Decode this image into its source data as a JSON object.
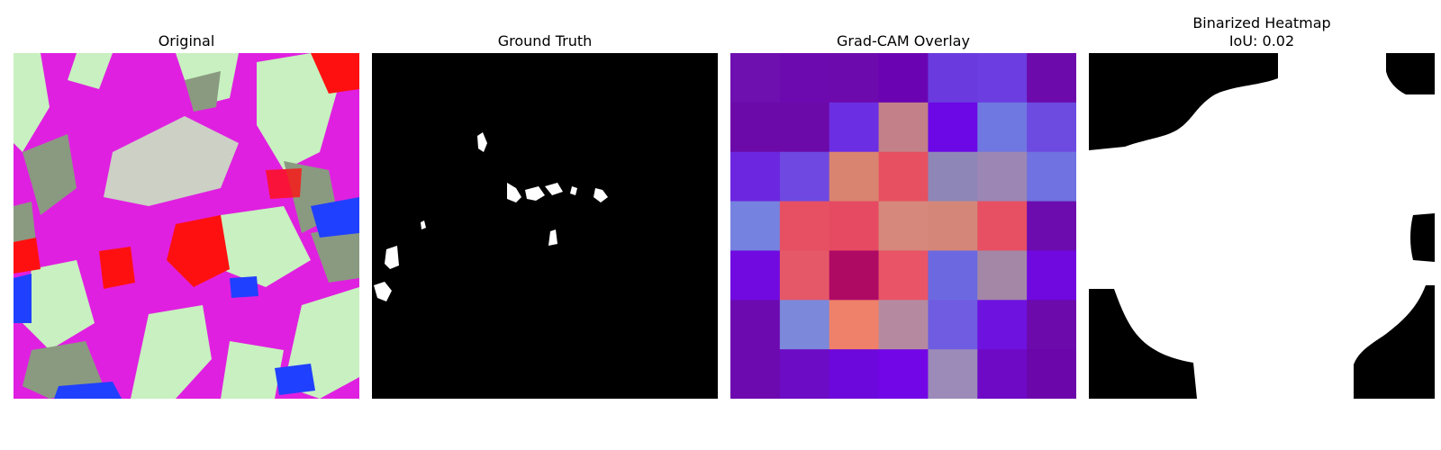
{
  "panels": [
    {
      "title": "Original"
    },
    {
      "title": "Ground Truth"
    },
    {
      "title": "Grad-CAM Overlay"
    },
    {
      "title": "Binarized Heatmap",
      "subtitle": "IoU: 0.02"
    }
  ],
  "colors": {
    "magenta": "#e020e0",
    "pale_green": "#c8f0c0",
    "gray_green": "#8a9a80",
    "red": "#ff1010",
    "blue": "#2040ff",
    "mask_white": "#ffffff",
    "mask_black": "#000000"
  },
  "gradcam_grid": [
    [
      "#6e0fb0",
      "#6c0ab0",
      "#6d0aae",
      "#6a04b2",
      "#6a3adf",
      "#6c3de0",
      "#6c0aac"
    ],
    [
      "#6c0aa9",
      "#6c0aa9",
      "#6c2ee2",
      "#c38088",
      "#6c08e5",
      "#6f78e0",
      "#6d4ae0"
    ],
    [
      "#6c26e0",
      "#6e48e0",
      "#d98470",
      "#e65060",
      "#8f86b8",
      "#9b86b4",
      "#6f72e0"
    ],
    [
      "#7682e0",
      "#e75063",
      "#e64a62",
      "#d6887c",
      "#d48779",
      "#e75063",
      "#6c0cae"
    ],
    [
      "#700ae0",
      "#e55868",
      "#ae0a64",
      "#e95566",
      "#6c68e0",
      "#a487a6",
      "#7008e0"
    ],
    [
      "#6c0ab0",
      "#7c88da",
      "#ef806a",
      "#b58aa0",
      "#6f5ce0",
      "#6e12e0",
      "#6c0aac"
    ],
    [
      "#6c0ab0",
      "#6c0cc4",
      "#6c08dc",
      "#7206e6",
      "#9c8ab8",
      "#6e0ac6",
      "#6a06aa"
    ]
  ]
}
